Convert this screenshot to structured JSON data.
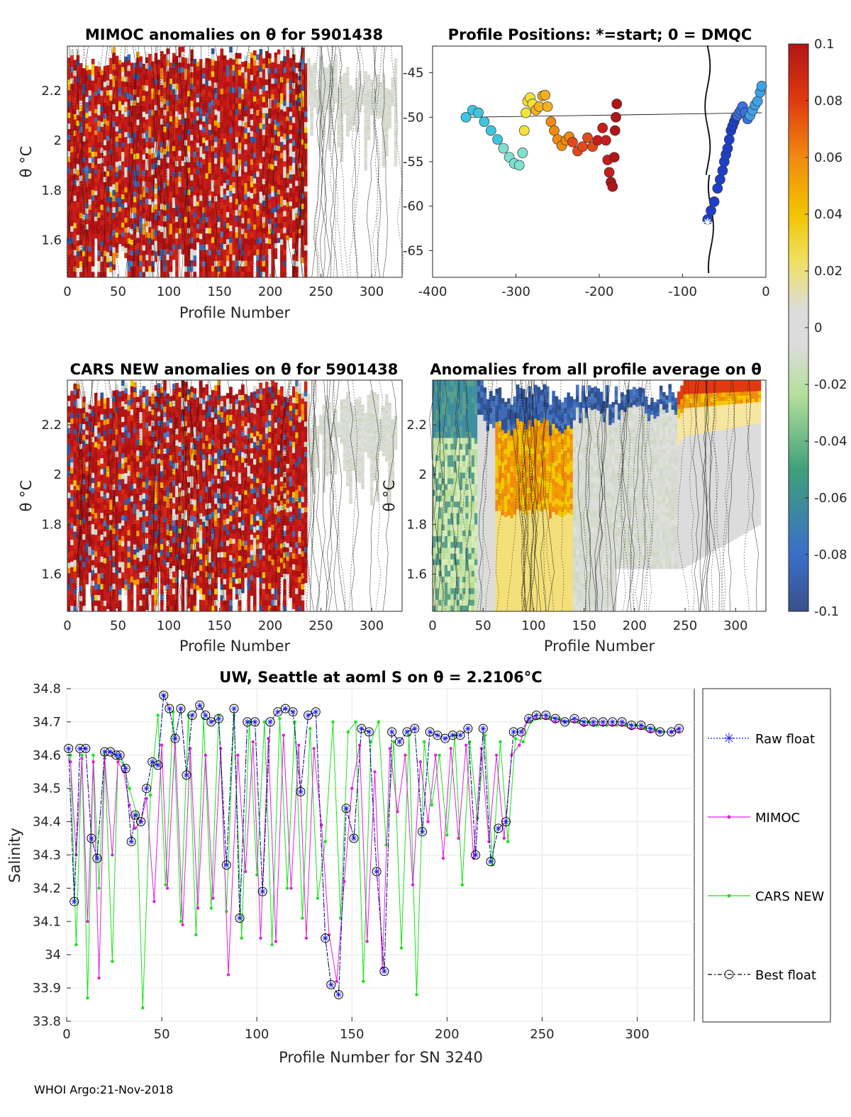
{
  "footer": "WHOI Argo:21-Nov-2018",
  "colorbar": {
    "ticks": [
      "0.1",
      "0.08",
      "0.06",
      "0.04",
      "0.02",
      "0",
      "-0.02",
      "-0.04",
      "-0.06",
      "-0.08",
      "-0.1"
    ],
    "range": [
      -0.1,
      0.1
    ]
  },
  "chart_data": [
    {
      "id": "mimoc",
      "type": "heatmap",
      "title": "MIMOC anomalies on θ  for 5901438",
      "xlabel": "Profile Number",
      "ylabel": "θ °C",
      "xlim": [
        0,
        330
      ],
      "ylim": [
        1.45,
        2.38
      ],
      "xticks": [
        0,
        50,
        100,
        150,
        200,
        250,
        300
      ],
      "yticks": [
        1.6,
        1.8,
        2,
        2.2
      ],
      "ytick_labels": [
        "1.6",
        "1.8",
        "2",
        "2.2"
      ],
      "description_of_values": "mostly saturated positive anomalies (>0.1) for profiles 0-240, near-zero anomalies for profiles 240-320"
    },
    {
      "id": "positions",
      "type": "scatter",
      "title": "Profile Positions: *=start; 0 = DMQC",
      "xlim": [
        -400,
        0
      ],
      "ylim": [
        -68,
        -42
      ],
      "xticks": [
        -400,
        -300,
        -200,
        -100,
        0
      ],
      "yticks": [
        -65,
        -60,
        -55,
        -50,
        -45
      ],
      "series": [
        {
          "name": "track",
          "x": [
            -360,
            -352,
            -345,
            -338,
            -330,
            -322,
            -315,
            -308,
            -302,
            -296,
            -292,
            -290,
            -288,
            -286,
            -283,
            -280,
            -276,
            -272,
            -268,
            -265,
            -262,
            -258,
            -254,
            -250,
            -245,
            -240,
            -236,
            -232,
            -226,
            -220,
            -214,
            -208,
            -202,
            -196,
            -192,
            -190,
            -188,
            -186,
            -184,
            -182,
            -181,
            -180,
            -179
          ],
          "y": [
            -50,
            -49.2,
            -49.5,
            -50.5,
            -51.5,
            -52.5,
            -53.5,
            -54.5,
            -55.2,
            -55.4,
            -54,
            -51.5,
            -49.5,
            -48.2,
            -47.8,
            -48.5,
            -49.2,
            -48.8,
            -47.6,
            -47.5,
            -48.8,
            -50.5,
            -51.5,
            -52.5,
            -53.2,
            -52.6,
            -52.2,
            -52.8,
            -53.8,
            -53.3,
            -52.3,
            -53.3,
            -52.6,
            -51.2,
            -52.6,
            -54.8,
            -56.2,
            -57.3,
            -57.8,
            -54.5,
            -51.5,
            -50,
            -48.5
          ]
        },
        {
          "name": "track-east",
          "x": [
            -70,
            -66,
            -62,
            -58,
            -55,
            -52,
            -50,
            -48,
            -46,
            -44,
            -42,
            -40,
            -38,
            -36,
            -34,
            -32,
            -30,
            -28,
            -25,
            -22,
            -19,
            -16,
            -13,
            -10,
            -7,
            -5
          ],
          "y": [
            -61.5,
            -60.5,
            -59.5,
            -58,
            -57,
            -56,
            -55,
            -54.2,
            -53.5,
            -52.5,
            -51.5,
            -51,
            -50.5,
            -50,
            -49.8,
            -49.5,
            -49.2,
            -48.8,
            -49.5,
            -50.2,
            -49.8,
            -49.2,
            -48.6,
            -48.2,
            -47.2,
            -46.5
          ]
        }
      ]
    },
    {
      "id": "cars",
      "type": "heatmap",
      "title": "CARS NEW anomalies on θ for 5901438",
      "xlabel": "Profile Number",
      "ylabel": "θ °C",
      "xlim": [
        0,
        330
      ],
      "ylim": [
        1.45,
        2.38
      ],
      "xticks": [
        0,
        50,
        100,
        150,
        200,
        250,
        300
      ],
      "yticks": [
        1.6,
        1.8,
        2,
        2.2
      ],
      "ytick_labels": [
        "1.6",
        "1.8",
        "2",
        "2.2"
      ]
    },
    {
      "id": "allavg",
      "type": "heatmap",
      "title": "Anomalies from all profile average on θ",
      "xlabel": "Profile Number",
      "ylabel": "θ °C",
      "xlim": [
        0,
        330
      ],
      "ylim": [
        1.45,
        2.38
      ],
      "xticks": [
        0,
        50,
        100,
        150,
        200,
        250,
        300
      ],
      "yticks": [
        1.6,
        1.8,
        2,
        2.2
      ],
      "ytick_labels": [
        "1.6",
        "1.8",
        "2",
        "2.2"
      ]
    },
    {
      "id": "salinity",
      "type": "line",
      "title": "UW, Seattle at aoml S on θ = 2.2106°C",
      "xlabel": "Profile Number for SN 3240",
      "ylabel": "Salinity",
      "xlim": [
        0,
        330
      ],
      "ylim": [
        33.8,
        34.8
      ],
      "xticks": [
        0,
        50,
        100,
        150,
        200,
        250,
        300
      ],
      "yticks": [
        33.8,
        33.9,
        34,
        34.1,
        34.2,
        34.3,
        34.4,
        34.5,
        34.6,
        34.7,
        34.8
      ],
      "ytick_labels": [
        "33.8",
        "33.9",
        "34",
        "34.1",
        "34.2",
        "34.3",
        "34.4",
        "34.5",
        "34.6",
        "34.7",
        "34.8"
      ],
      "legend": [
        "Raw float",
        "MIMOC",
        "CARS NEW",
        "Best float"
      ],
      "series": [
        {
          "name": "Raw float",
          "x": [
            1,
            4,
            7,
            10,
            13,
            16,
            20,
            23,
            26,
            28,
            31,
            34,
            36,
            39,
            42,
            45,
            48,
            51,
            54,
            57,
            60,
            63,
            66,
            70,
            73,
            76,
            80,
            84,
            88,
            91,
            95,
            99,
            103,
            107,
            111,
            115,
            119,
            123,
            127,
            131,
            136,
            139,
            143,
            147,
            151,
            155,
            159,
            163,
            167,
            171,
            175,
            179,
            183,
            187,
            191,
            195,
            199,
            203,
            207,
            211,
            215,
            219,
            223,
            227,
            231,
            235,
            239,
            243,
            247,
            252,
            257,
            262,
            267,
            272,
            277,
            282,
            287,
            292,
            297,
            302,
            307,
            312,
            318,
            322
          ],
          "y": [
            34.62,
            34.16,
            34.62,
            34.62,
            34.35,
            34.29,
            34.61,
            34.61,
            34.6,
            34.6,
            34.56,
            34.34,
            34.42,
            34.4,
            34.5,
            34.58,
            34.57,
            34.78,
            34.74,
            34.65,
            34.74,
            34.54,
            34.72,
            34.75,
            34.72,
            34.7,
            34.71,
            34.27,
            34.74,
            34.11,
            34.7,
            34.7,
            34.19,
            34.7,
            34.73,
            34.74,
            34.73,
            34.49,
            34.72,
            34.73,
            34.05,
            33.91,
            33.88,
            34.44,
            34.35,
            34.68,
            34.67,
            34.25,
            33.95,
            34.67,
            34.64,
            34.67,
            34.68,
            34.37,
            34.67,
            34.66,
            34.65,
            34.66,
            34.66,
            34.68,
            34.3,
            34.68,
            34.28,
            34.38,
            34.4,
            34.67,
            34.67,
            34.71,
            34.72,
            34.72,
            34.71,
            34.7,
            34.71,
            34.7,
            34.7,
            34.7,
            34.7,
            34.7,
            34.69,
            34.69,
            34.68,
            34.67,
            34.67,
            34.68
          ]
        },
        {
          "name": "MIMOC",
          "x": [
            2,
            5,
            8,
            11,
            14,
            17,
            20,
            24,
            27,
            30,
            33,
            36,
            39,
            42,
            46,
            50,
            53,
            57,
            61,
            65,
            69,
            73,
            77,
            81,
            85,
            90,
            94,
            98,
            102,
            106,
            110,
            114,
            118,
            122,
            126,
            130,
            134,
            138,
            142,
            146,
            150,
            154,
            158,
            162,
            166,
            170,
            174,
            178,
            182,
            186,
            190,
            194,
            198,
            202,
            206,
            210,
            214,
            218,
            222,
            226,
            230,
            234,
            238,
            242,
            247,
            252,
            257,
            262,
            267,
            272,
            277,
            282,
            287,
            292,
            297,
            302,
            307,
            312,
            318,
            322
          ],
          "y": [
            34.58,
            34.3,
            34.59,
            34.1,
            34.58,
            33.93,
            34.59,
            34.3,
            34.58,
            34.55,
            34.45,
            34.38,
            34.4,
            34.47,
            34.16,
            34.63,
            34.2,
            34.65,
            34.09,
            34.62,
            34.14,
            34.6,
            34.17,
            34.62,
            33.94,
            34.6,
            34.25,
            34.64,
            34.05,
            34.65,
            34.04,
            34.66,
            34.2,
            34.63,
            34.05,
            34.62,
            34.39,
            34.06,
            33.92,
            34.22,
            34.5,
            34.63,
            34.04,
            34.55,
            33.96,
            34.62,
            34.43,
            34.6,
            34.21,
            34.58,
            34.4,
            34.6,
            34.29,
            34.62,
            34.35,
            34.63,
            34.29,
            34.62,
            34.34,
            34.6,
            34.35,
            34.6,
            34.63,
            34.7,
            34.71,
            34.71,
            34.7,
            34.7,
            34.7,
            34.69,
            34.69,
            34.69,
            34.69,
            34.69,
            34.68,
            34.68,
            34.67,
            34.67,
            34.67,
            34.67
          ]
        },
        {
          "name": "CARS NEW",
          "x": [
            2,
            5,
            8,
            11,
            14,
            17,
            20,
            24,
            27,
            30,
            33,
            37,
            40,
            44,
            48,
            52,
            56,
            60,
            64,
            68,
            72,
            76,
            80,
            84,
            88,
            92,
            96,
            100,
            104,
            108,
            112,
            116,
            120,
            124,
            128,
            132,
            136,
            140,
            144,
            148,
            152,
            156,
            160,
            164,
            168,
            172,
            176,
            180,
            184,
            188,
            192,
            196,
            200,
            204,
            208,
            212,
            216,
            220,
            224,
            228,
            232,
            236,
            240,
            244,
            249,
            254,
            259,
            264,
            269,
            274,
            279,
            284,
            289,
            294,
            299,
            304,
            309,
            314,
            318,
            322
          ],
          "y": [
            34.6,
            34.03,
            34.6,
            33.87,
            34.6,
            34.2,
            34.6,
            33.98,
            34.59,
            34.57,
            34.5,
            34.42,
            33.84,
            34.48,
            34.72,
            34.21,
            34.73,
            34.1,
            34.72,
            34.06,
            34.71,
            34.14,
            34.72,
            34.13,
            34.72,
            34.05,
            34.7,
            34.24,
            34.7,
            34.03,
            34.71,
            34.2,
            34.7,
            34.11,
            34.68,
            34.17,
            34.34,
            34.7,
            34.11,
            34.67,
            34.7,
            33.92,
            34.64,
            34.7,
            34.33,
            34.64,
            34.02,
            34.66,
            33.88,
            34.64,
            34.45,
            34.6,
            34.36,
            34.66,
            34.21,
            34.64,
            34.41,
            34.66,
            34.27,
            34.64,
            34.34,
            34.65,
            34.64,
            34.7,
            34.71,
            34.71,
            34.71,
            34.7,
            34.7,
            34.7,
            34.69,
            34.69,
            34.69,
            34.69,
            34.69,
            34.68,
            34.68,
            34.67,
            34.67,
            34.67
          ]
        },
        {
          "name": "Best float",
          "x": [
            1,
            4,
            7,
            10,
            13,
            16,
            20,
            23,
            26,
            28,
            31,
            34,
            36,
            39,
            42,
            45,
            48,
            51,
            54,
            57,
            60,
            63,
            66,
            70,
            73,
            76,
            80,
            84,
            88,
            91,
            95,
            99,
            103,
            107,
            111,
            115,
            119,
            123,
            127,
            131,
            136,
            139,
            143,
            147,
            151,
            155,
            159,
            163,
            167,
            171,
            175,
            179,
            183,
            187,
            191,
            195,
            199,
            203,
            207,
            211,
            215,
            219,
            223,
            227,
            231,
            235,
            239,
            243,
            247,
            252,
            257,
            262,
            267,
            272,
            277,
            282,
            287,
            292,
            297,
            302,
            307,
            312,
            318,
            322
          ],
          "y": [
            34.62,
            34.16,
            34.62,
            34.62,
            34.35,
            34.29,
            34.61,
            34.61,
            34.6,
            34.6,
            34.56,
            34.34,
            34.42,
            34.4,
            34.5,
            34.58,
            34.57,
            34.78,
            34.74,
            34.65,
            34.74,
            34.54,
            34.72,
            34.75,
            34.72,
            34.7,
            34.71,
            34.27,
            34.74,
            34.11,
            34.7,
            34.7,
            34.19,
            34.7,
            34.73,
            34.74,
            34.73,
            34.49,
            34.72,
            34.73,
            34.05,
            33.91,
            33.88,
            34.44,
            34.35,
            34.68,
            34.67,
            34.25,
            33.95,
            34.67,
            34.64,
            34.67,
            34.68,
            34.37,
            34.67,
            34.66,
            34.65,
            34.66,
            34.66,
            34.68,
            34.3,
            34.68,
            34.28,
            34.38,
            34.4,
            34.67,
            34.67,
            34.71,
            34.72,
            34.72,
            34.71,
            34.7,
            34.71,
            34.7,
            34.7,
            34.7,
            34.7,
            34.7,
            34.69,
            34.69,
            34.68,
            34.67,
            34.67,
            34.68
          ]
        }
      ]
    }
  ]
}
